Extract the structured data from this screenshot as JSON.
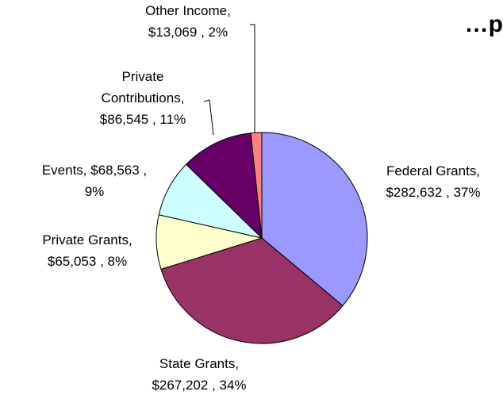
{
  "chart_data": {
    "type": "pie",
    "title": "…p",
    "slices": [
      {
        "name": "Federal Grants",
        "value": 282632,
        "value_text": "$282,632",
        "pct_text": "37%",
        "color": "#9999ff"
      },
      {
        "name": "State Grants",
        "value": 267202,
        "value_text": "$267,202",
        "pct_text": "34%",
        "color": "#993366"
      },
      {
        "name": "Private Grants",
        "value": 65053,
        "value_text": "$65,053",
        "pct_text": "8%",
        "color": "#ffffcc"
      },
      {
        "name": "Events",
        "value": 68563,
        "value_text": "$68,563",
        "pct_text": "9%",
        "color": "#ccffff"
      },
      {
        "name": "Private Contributions",
        "value": 86545,
        "value_text": "$86,545",
        "pct_text": "11%",
        "color": "#660066"
      },
      {
        "name": "Other Income",
        "value": 13069,
        "value_text": "$13,069",
        "pct_text": "2%",
        "color": "#ff8080"
      }
    ],
    "labels": [
      {
        "lines": [
          "Federal Grants,",
          "$282,632 , 37%"
        ]
      },
      {
        "lines": [
          "State Grants,",
          "$267,202 , 34%"
        ]
      },
      {
        "lines": [
          "Private Grants,",
          "$65,053 , 8%"
        ]
      },
      {
        "lines": [
          "Events, $68,563 ,",
          "9%"
        ]
      },
      {
        "lines": [
          "Private",
          "Contributions,",
          "$86,545 , 11%"
        ]
      },
      {
        "lines": [
          "Other Income,",
          "$13,069 , 2%"
        ]
      }
    ]
  }
}
